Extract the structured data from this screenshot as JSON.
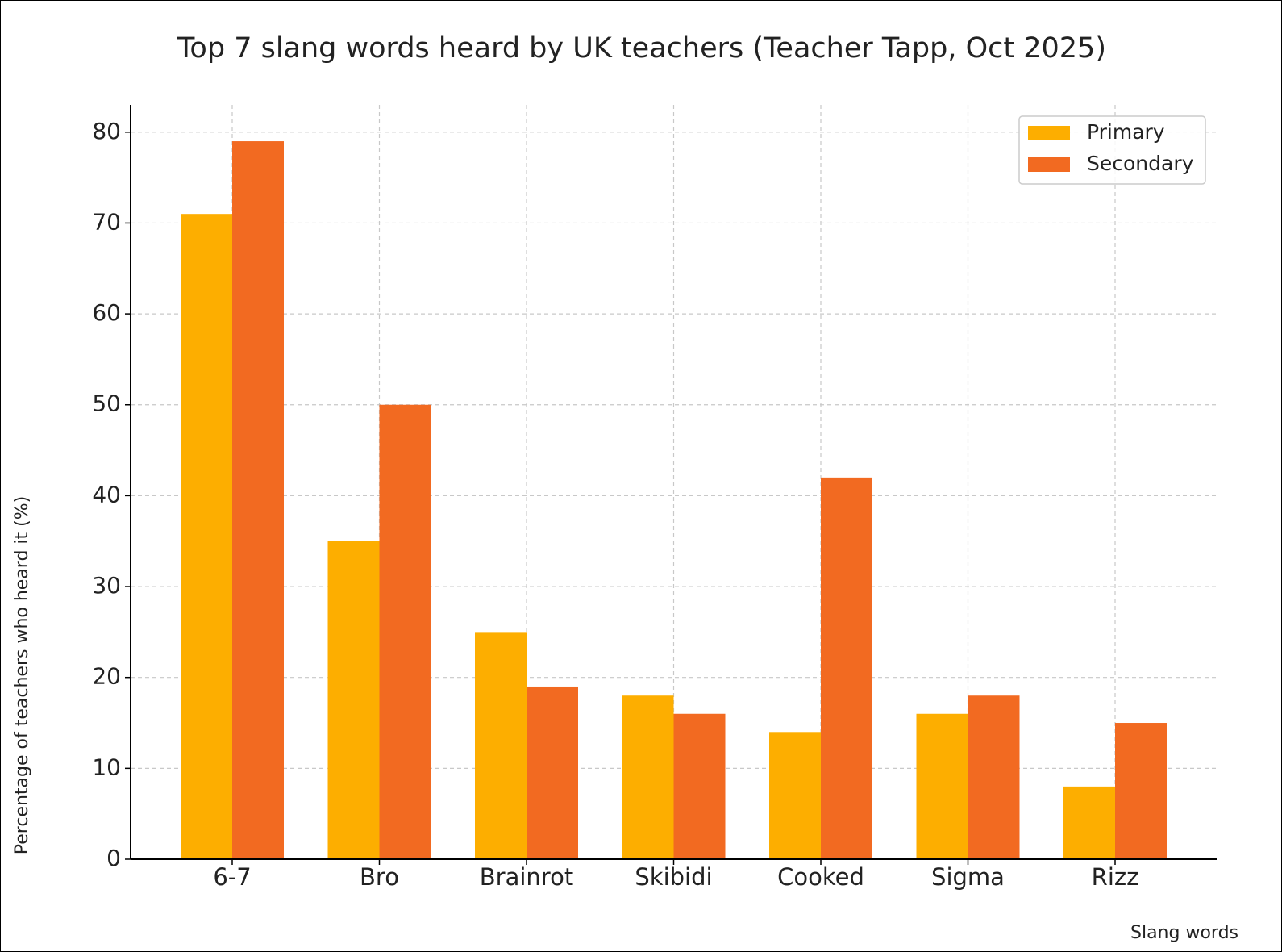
{
  "chart_data": {
    "type": "bar",
    "title": "Top 7 slang words heard by UK teachers (Teacher Tapp, Oct 2025)",
    "x_label": "Slang words",
    "y_label": "Percentage of teachers who heard it (%)",
    "categories": [
      "6-7",
      "Bro",
      "Brainrot",
      "Skibidi",
      "Cooked",
      "Sigma",
      "Rizz"
    ],
    "series": [
      {
        "name": "Primary",
        "color": "#fdae00",
        "values": [
          71,
          35,
          25,
          18,
          14,
          16,
          8
        ]
      },
      {
        "name": "Secondary",
        "color": "#f26a21",
        "values": [
          79,
          50,
          19,
          16,
          42,
          18,
          15
        ]
      }
    ],
    "ylim": [
      0,
      83
    ],
    "yticks": [
      0,
      10,
      20,
      30,
      40,
      50,
      60,
      70,
      80
    ],
    "grid": true,
    "legend": "upper right"
  }
}
